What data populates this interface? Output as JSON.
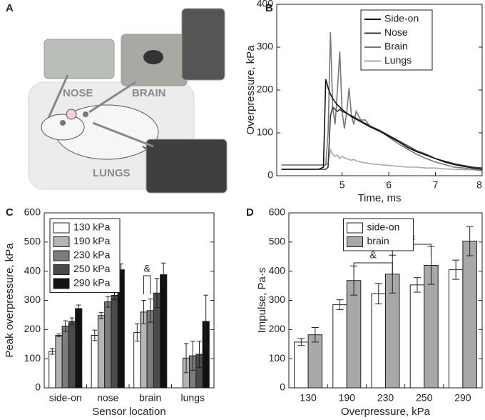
{
  "figure_a": {
    "panel_label": "A",
    "labels": [
      "NOSE",
      "BRAIN",
      "LUNGS"
    ]
  },
  "chart_data": [
    {
      "type": "line",
      "panel_label": "B",
      "x_label": "Time, ms",
      "y_label": "Overpressure, kPa",
      "xlim": [
        3.6,
        8
      ],
      "xticks": [
        5,
        6,
        7,
        8
      ],
      "ylim": [
        0,
        400
      ],
      "yticks": [
        0,
        100,
        200,
        300,
        400
      ],
      "legend": "upper right",
      "x": [
        3.7,
        4.0,
        4.3,
        4.5,
        4.6,
        4.65,
        4.7,
        4.75,
        4.8,
        4.85,
        4.9,
        4.95,
        5.0,
        5.05,
        5.1,
        5.15,
        5.2,
        5.25,
        5.3,
        5.4,
        5.5,
        5.6,
        5.8,
        6.0,
        6.2,
        6.4,
        6.6,
        6.8,
        7.0,
        7.2,
        7.4,
        7.6,
        7.8,
        8.0
      ],
      "series": [
        {
          "name": "Side-on",
          "color": "#111111",
          "values": [
            15,
            15,
            15,
            15,
            20,
            225,
            205,
            190,
            180,
            172,
            165,
            160,
            155,
            150,
            146,
            142,
            138,
            135,
            132,
            126,
            120,
            114,
            104,
            92,
            80,
            66,
            56,
            48,
            40,
            32,
            26,
            22,
            18,
            15
          ]
        },
        {
          "name": "Nose",
          "color": "#3a3a3a",
          "values": [
            15,
            15,
            15,
            15,
            15,
            15,
            20,
            140,
            160,
            155,
            150,
            155,
            150,
            148,
            145,
            142,
            140,
            138,
            134,
            128,
            122,
            116,
            106,
            94,
            82,
            70,
            58,
            50,
            40,
            34,
            28,
            24,
            20,
            18
          ]
        },
        {
          "name": "Brain",
          "color": "#777777",
          "values": [
            25,
            25,
            25,
            25,
            25,
            25,
            100,
            335,
            160,
            120,
            200,
            290,
            150,
            110,
            150,
            205,
            140,
            120,
            150,
            130,
            130,
            115,
            105,
            90,
            75,
            62,
            50,
            40,
            32,
            26,
            20,
            18,
            15,
            12
          ]
        },
        {
          "name": "Lungs",
          "color": "#a8a8a8",
          "values": [
            25,
            25,
            25,
            25,
            25,
            25,
            30,
            60,
            50,
            45,
            48,
            40,
            45,
            42,
            40,
            38,
            36,
            38,
            35,
            32,
            30,
            28,
            26,
            24,
            22,
            20,
            20,
            18,
            18,
            16,
            15,
            14,
            14,
            12
          ]
        }
      ]
    },
    {
      "type": "bar",
      "panel_label": "C",
      "x_label": "Sensor location",
      "y_label": "Peak overpressure, kPa",
      "categories": [
        "side-on",
        "nose",
        "brain",
        "lungs"
      ],
      "ylim": [
        0,
        600
      ],
      "yticks": [
        0,
        100,
        200,
        300,
        400,
        500,
        600
      ],
      "legend": "upper left",
      "annotations": [
        "&"
      ],
      "series": [
        {
          "name": "130 kPa",
          "color": "#ffffff",
          "values": [
            125,
            180,
            190,
            null
          ],
          "errors": [
            10,
            18,
            30,
            null
          ]
        },
        {
          "name": "190 kPa",
          "color": "#b4b4b4",
          "values": [
            180,
            248,
            260,
            102
          ],
          "errors": [
            5,
            10,
            40,
            50
          ]
        },
        {
          "name": "230 kPa",
          "color": "#7c7c7c",
          "values": [
            212,
            295,
            265,
            110
          ],
          "errors": [
            18,
            18,
            40,
            50
          ]
        },
        {
          "name": "250 kPa",
          "color": "#4a4a4a",
          "values": [
            228,
            317,
            325,
            115
          ],
          "errors": [
            12,
            15,
            50,
            45
          ]
        },
        {
          "name": "290 kPa",
          "color": "#111111",
          "values": [
            272,
            405,
            388,
            228
          ],
          "errors": [
            12,
            20,
            40,
            90
          ]
        }
      ]
    },
    {
      "type": "bar",
      "panel_label": "D",
      "x_label": "Overpressure, kPa",
      "y_label": "Impulse, Pa·s",
      "categories": [
        "130",
        "190",
        "230",
        "250",
        "290"
      ],
      "ylim": [
        0,
        600
      ],
      "yticks": [
        0,
        100,
        200,
        300,
        400,
        500,
        600
      ],
      "legend": "upper center",
      "annotations": [
        "&",
        "&"
      ],
      "series": [
        {
          "name": "side-on",
          "color": "#ffffff",
          "values": [
            157,
            285,
            323,
            353,
            405
          ],
          "errors": [
            12,
            17,
            35,
            25,
            33
          ]
        },
        {
          "name": "brain",
          "color": "#a8a8a8",
          "values": [
            182,
            368,
            390,
            420,
            503
          ],
          "errors": [
            25,
            50,
            65,
            65,
            50
          ]
        }
      ]
    }
  ]
}
